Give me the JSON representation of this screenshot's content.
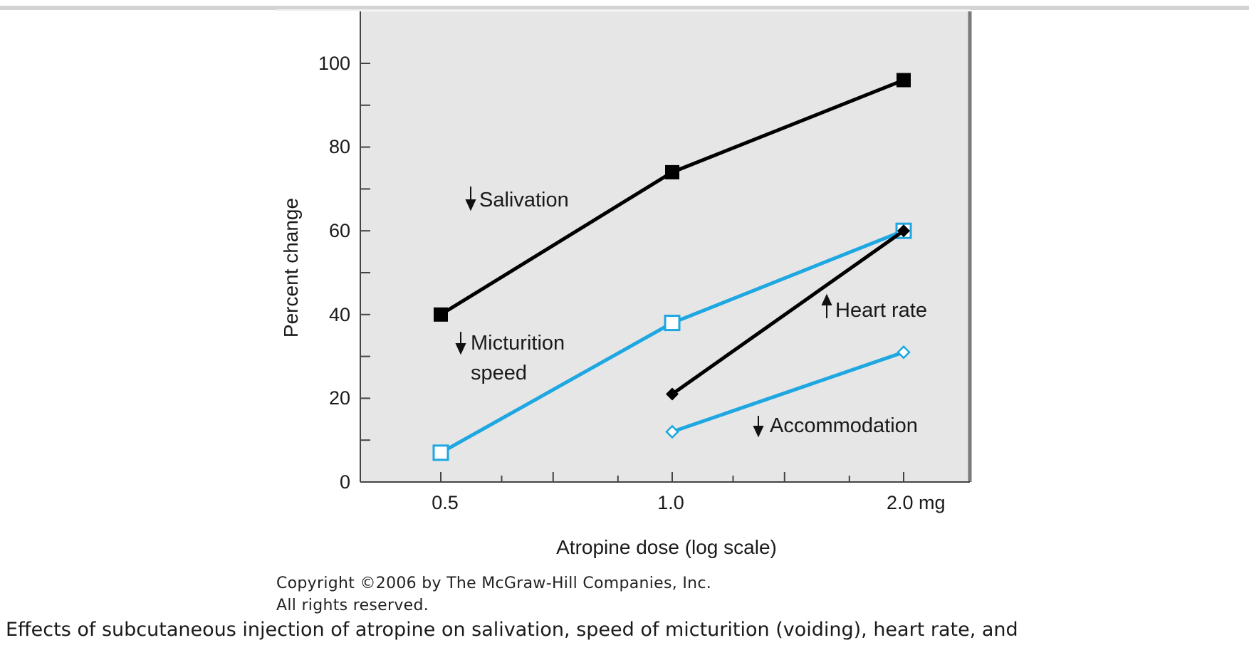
{
  "chart_data": {
    "type": "line",
    "ylabel": "Percent change",
    "xlabel": "Atropine dose (log scale)",
    "x_scale": "log",
    "x_ticks": [
      "0.5",
      "1.0",
      "2.0 mg"
    ],
    "xlim": [
      0.5,
      2.0
    ],
    "y_ticks": [
      "0",
      "20",
      "40",
      "60",
      "80",
      "100"
    ],
    "ylim": [
      0,
      100
    ],
    "grid": false,
    "series": [
      {
        "name": "Salivation",
        "direction": "decrease",
        "marker": "filled-square",
        "color": "#000000",
        "x": [
          0.5,
          1.0,
          2.0
        ],
        "values": [
          40,
          74,
          96
        ]
      },
      {
        "name": "Micturition speed",
        "direction": "decrease",
        "marker": "open-square",
        "color": "#1ea7e1",
        "x": [
          0.5,
          1.0,
          2.0
        ],
        "values": [
          7,
          38,
          60
        ]
      },
      {
        "name": "Heart rate",
        "direction": "increase",
        "marker": "filled-diamond",
        "color": "#000000",
        "x": [
          1.0,
          2.0
        ],
        "values": [
          21,
          60
        ]
      },
      {
        "name": "Accommodation",
        "direction": "decrease",
        "marker": "open-diamond",
        "color": "#1ea7e1",
        "x": [
          1.0,
          2.0
        ],
        "values": [
          12,
          31
        ]
      }
    ],
    "labels": {
      "salivation": "Salivation",
      "micturition_1": "Micturition",
      "micturition_2": "speed",
      "heart_rate": "Heart rate",
      "accommodation": "Accommodation"
    }
  },
  "copyright": {
    "line1": "Copyright ©2006 by The McGraw-Hill Companies, Inc.",
    "line2": "All rights reserved."
  },
  "caption": "Effects of subcutaneous injection of atropine on salivation, speed of micturition (voiding), heart rate, and"
}
